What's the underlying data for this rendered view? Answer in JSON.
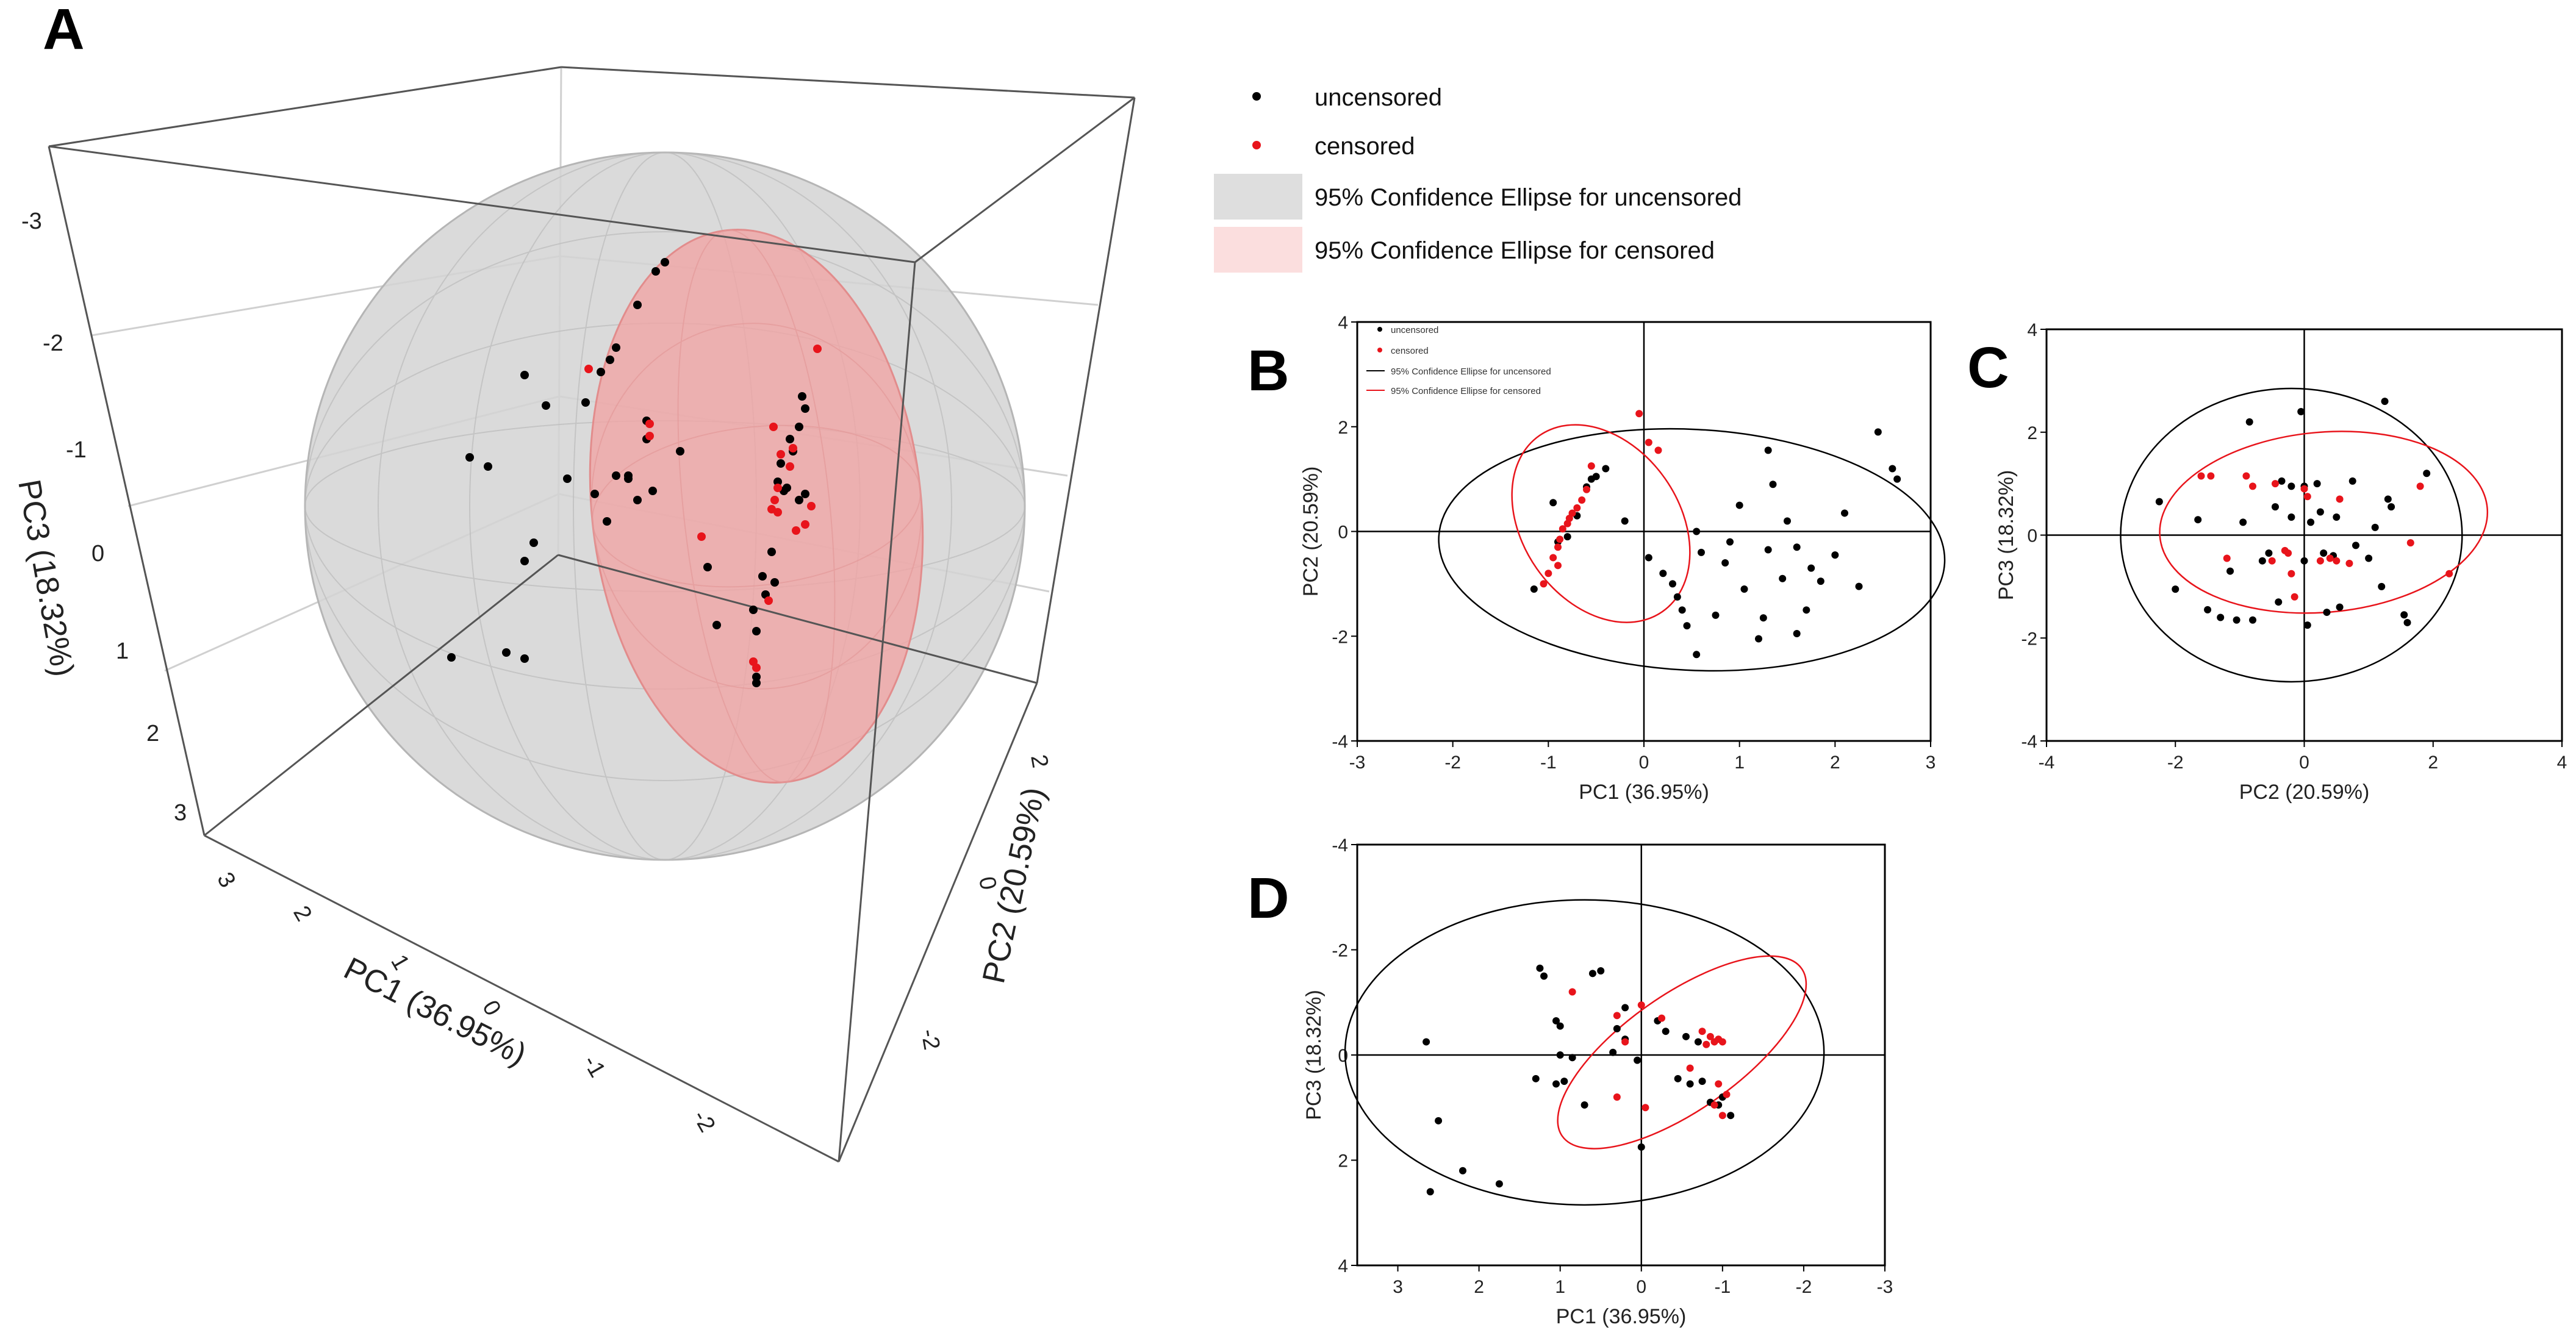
{
  "colors": {
    "uncensored": "#000000",
    "censored": "#e8141b",
    "ellipse_uncensored_fill": "#d4d4d4",
    "ellipse_censored_fill": "#f3b1b1",
    "ellipse_uncensored_line": "#000000",
    "ellipse_censored_line": "#e8141b"
  },
  "legend": {
    "uncensored": "uncensored",
    "censored": "censored",
    "ci_uncensored": "95% Confidence Ellipse for uncensored",
    "ci_censored": "95% Confidence Ellipse for censored"
  },
  "chart_data": [
    {
      "panel": "A",
      "type": "scatter",
      "projection": "3d",
      "xlabel": "PC1 (36.95%)",
      "ylabel": "PC2 (20.59%)",
      "zlabel": "PC3 (18.32%)",
      "x_ticks": [
        "3",
        "2",
        "1",
        "0",
        "-1",
        "-2"
      ],
      "y_ticks": [
        "2",
        "0",
        "-2"
      ],
      "z_ticks": [
        "-3",
        "-2",
        "-1",
        "0",
        "1",
        "2",
        "3"
      ],
      "legend_position": "top-right",
      "series": [
        {
          "name": "uncensored",
          "n_points": 55
        },
        {
          "name": "censored",
          "n_points": 25
        }
      ]
    },
    {
      "panel": "B",
      "type": "scatter",
      "xlabel": "PC1 (36.95%)",
      "ylabel": "PC2 (20.59%)",
      "xlim": [
        -3,
        3
      ],
      "ylim": [
        -4,
        4
      ],
      "x_ticks": [
        "-3",
        "-2",
        "-1",
        "0",
        "1",
        "2",
        "3"
      ],
      "y_ticks": [
        "-4",
        "-2",
        "0",
        "2",
        "4"
      ],
      "legend_position": "top-left",
      "series": [
        {
          "name": "uncensored",
          "points": [
            [
              -1.15,
              -1.1
            ],
            [
              -0.9,
              -0.2
            ],
            [
              -0.8,
              -0.1
            ],
            [
              -0.7,
              0.3
            ],
            [
              -0.95,
              0.55
            ],
            [
              -0.6,
              0.85
            ],
            [
              -0.55,
              1.0
            ],
            [
              -0.5,
              1.05
            ],
            [
              -0.4,
              1.2
            ],
            [
              -0.2,
              0.2
            ],
            [
              0.05,
              -0.5
            ],
            [
              0.2,
              -0.8
            ],
            [
              0.3,
              -1.0
            ],
            [
              0.35,
              -1.25
            ],
            [
              0.4,
              -1.5
            ],
            [
              0.45,
              -1.8
            ],
            [
              0.55,
              -2.35
            ],
            [
              0.6,
              -0.4
            ],
            [
              0.75,
              -1.6
            ],
            [
              0.85,
              -0.6
            ],
            [
              1.0,
              0.5
            ],
            [
              1.05,
              -1.1
            ],
            [
              1.2,
              -2.05
            ],
            [
              1.25,
              -1.65
            ],
            [
              1.3,
              -0.35
            ],
            [
              1.3,
              1.55
            ],
            [
              1.35,
              0.9
            ],
            [
              1.45,
              -0.9
            ],
            [
              1.5,
              0.2
            ],
            [
              1.6,
              -0.3
            ],
            [
              1.7,
              -1.5
            ],
            [
              1.75,
              -0.7
            ],
            [
              1.85,
              -0.95
            ],
            [
              2.0,
              -0.45
            ],
            [
              2.1,
              0.35
            ],
            [
              2.25,
              -1.05
            ],
            [
              2.45,
              1.9
            ],
            [
              2.6,
              1.2
            ],
            [
              2.65,
              1.0
            ],
            [
              0.9,
              -0.2
            ],
            [
              1.6,
              -1.95
            ],
            [
              0.55,
              0.0
            ]
          ]
        },
        {
          "name": "censored",
          "points": [
            [
              -1.05,
              -1.0
            ],
            [
              -1.0,
              -0.8
            ],
            [
              -0.95,
              -0.5
            ],
            [
              -0.9,
              -0.3
            ],
            [
              -0.88,
              -0.15
            ],
            [
              -0.85,
              0.05
            ],
            [
              -0.8,
              0.15
            ],
            [
              -0.75,
              0.35
            ],
            [
              -0.7,
              0.45
            ],
            [
              -0.65,
              0.6
            ],
            [
              -0.6,
              0.8
            ],
            [
              -0.55,
              1.25
            ],
            [
              -0.05,
              2.25
            ],
            [
              0.05,
              1.7
            ],
            [
              0.15,
              1.55
            ],
            [
              -0.9,
              -0.65
            ],
            [
              -0.78,
              0.25
            ]
          ]
        }
      ],
      "ellipses": [
        {
          "name": "uncensored",
          "cx": 0.5,
          "cy": -0.35,
          "rx": 2.65,
          "ry": 2.3,
          "angle_deg": -3
        },
        {
          "name": "censored",
          "cx": -0.45,
          "cy": 0.15,
          "rx": 0.82,
          "ry": 2.05,
          "angle_deg": 35
        }
      ]
    },
    {
      "panel": "C",
      "type": "scatter",
      "xlabel": "PC2 (20.59%)",
      "ylabel": "PC3 (18.32%)",
      "xlim": [
        -4,
        4
      ],
      "ylim": [
        -4,
        4
      ],
      "x_ticks": [
        "-4",
        "-2",
        "0",
        "2",
        "4"
      ],
      "y_ticks": [
        "-4",
        "-2",
        "0",
        "2",
        "4"
      ],
      "series": [
        {
          "name": "uncensored",
          "points": [
            [
              -2.25,
              0.65
            ],
            [
              -2.0,
              -1.05
            ],
            [
              -1.65,
              0.3
            ],
            [
              -1.5,
              -1.45
            ],
            [
              -1.3,
              -1.6
            ],
            [
              -1.05,
              -1.65
            ],
            [
              -0.95,
              0.25
            ],
            [
              -0.85,
              2.2
            ],
            [
              -0.8,
              -1.65
            ],
            [
              -0.65,
              -0.5
            ],
            [
              -0.45,
              0.55
            ],
            [
              -0.4,
              -1.3
            ],
            [
              -0.35,
              1.05
            ],
            [
              -0.2,
              0.95
            ],
            [
              -0.2,
              0.35
            ],
            [
              -0.05,
              2.4
            ],
            [
              0.0,
              -0.5
            ],
            [
              0.05,
              -1.75
            ],
            [
              0.1,
              0.25
            ],
            [
              0.2,
              1.0
            ],
            [
              0.25,
              0.45
            ],
            [
              0.3,
              -0.35
            ],
            [
              0.35,
              -1.5
            ],
            [
              0.45,
              -0.4
            ],
            [
              0.5,
              0.35
            ],
            [
              0.55,
              -1.4
            ],
            [
              0.75,
              1.05
            ],
            [
              0.8,
              -0.2
            ],
            [
              1.0,
              -0.45
            ],
            [
              1.1,
              0.15
            ],
            [
              1.2,
              -1.0
            ],
            [
              1.25,
              2.6
            ],
            [
              1.3,
              0.7
            ],
            [
              1.35,
              0.55
            ],
            [
              1.55,
              -1.55
            ],
            [
              1.6,
              -1.7
            ],
            [
              1.9,
              1.2
            ],
            [
              -0.55,
              -0.35
            ],
            [
              0.0,
              0.95
            ],
            [
              -1.15,
              -0.7
            ]
          ]
        },
        {
          "name": "censored",
          "points": [
            [
              -1.6,
              1.15
            ],
            [
              -1.45,
              1.15
            ],
            [
              -0.9,
              1.15
            ],
            [
              -0.8,
              0.95
            ],
            [
              -0.5,
              -0.5
            ],
            [
              -0.45,
              1.0
            ],
            [
              -0.3,
              -0.3
            ],
            [
              -0.25,
              -0.35
            ],
            [
              -0.2,
              -0.75
            ],
            [
              -0.15,
              -1.2
            ],
            [
              0.0,
              0.9
            ],
            [
              0.05,
              0.75
            ],
            [
              0.25,
              -0.5
            ],
            [
              0.4,
              -0.45
            ],
            [
              0.5,
              -0.5
            ],
            [
              0.55,
              0.7
            ],
            [
              0.7,
              -0.55
            ],
            [
              1.65,
              -0.15
            ],
            [
              1.8,
              0.95
            ],
            [
              2.25,
              -0.75
            ],
            [
              -1.2,
              -0.45
            ]
          ]
        }
      ],
      "ellipses": [
        {
          "name": "uncensored",
          "cx": -0.2,
          "cy": 0.0,
          "rx": 2.65,
          "ry": 2.85,
          "angle_deg": 0
        },
        {
          "name": "censored",
          "cx": 0.3,
          "cy": 0.25,
          "rx": 2.55,
          "ry": 1.75,
          "angle_deg": 5
        }
      ]
    },
    {
      "panel": "D",
      "type": "scatter",
      "xlabel": "PC1 (36.95%)",
      "ylabel": "PC3 (18.32%)",
      "xlim": [
        3.5,
        -3
      ],
      "ylim": [
        4,
        -4
      ],
      "x_ticks": [
        "3",
        "2",
        "1",
        "0",
        "-1",
        "-2",
        "-3"
      ],
      "y_ticks": [
        "-4",
        "-2",
        "0",
        "2",
        "4"
      ],
      "series": [
        {
          "name": "uncensored",
          "points": [
            [
              2.6,
              2.6
            ],
            [
              2.5,
              1.25
            ],
            [
              2.65,
              -0.25
            ],
            [
              2.2,
              2.2
            ],
            [
              1.75,
              2.45
            ],
            [
              1.25,
              -1.65
            ],
            [
              1.2,
              -1.5
            ],
            [
              1.05,
              -0.65
            ],
            [
              1.0,
              0.0
            ],
            [
              1.0,
              -0.55
            ],
            [
              1.05,
              0.55
            ],
            [
              0.95,
              0.5
            ],
            [
              0.85,
              0.05
            ],
            [
              0.7,
              0.95
            ],
            [
              0.6,
              -1.55
            ],
            [
              0.5,
              -1.6
            ],
            [
              0.35,
              -0.05
            ],
            [
              0.3,
              -0.5
            ],
            [
              0.2,
              -0.3
            ],
            [
              0.05,
              0.1
            ],
            [
              0.0,
              1.75
            ],
            [
              -0.2,
              -0.65
            ],
            [
              -0.3,
              -0.45
            ],
            [
              -0.45,
              0.45
            ],
            [
              -0.6,
              0.55
            ],
            [
              -0.75,
              0.5
            ],
            [
              -0.85,
              0.9
            ],
            [
              -0.95,
              0.95
            ],
            [
              -1.0,
              0.8
            ],
            [
              -0.55,
              -0.35
            ],
            [
              -0.7,
              -0.25
            ],
            [
              -1.1,
              1.15
            ],
            [
              1.3,
              0.45
            ],
            [
              0.2,
              -0.9
            ]
          ]
        },
        {
          "name": "censored",
          "points": [
            [
              0.85,
              -1.2
            ],
            [
              0.3,
              -0.75
            ],
            [
              0.2,
              -0.25
            ],
            [
              -0.05,
              1.0
            ],
            [
              -0.25,
              -0.7
            ],
            [
              -0.6,
              0.25
            ],
            [
              -0.75,
              -0.45
            ],
            [
              -0.8,
              -0.2
            ],
            [
              -0.85,
              -0.35
            ],
            [
              -0.9,
              -0.25
            ],
            [
              -0.95,
              -0.3
            ],
            [
              -1.0,
              -0.25
            ],
            [
              -0.9,
              0.95
            ],
            [
              -1.0,
              1.15
            ],
            [
              -1.05,
              0.75
            ],
            [
              -0.95,
              0.55
            ],
            [
              0.0,
              -0.95
            ],
            [
              0.3,
              0.8
            ]
          ]
        }
      ],
      "ellipses": [
        {
          "name": "uncensored",
          "cx": 0.7,
          "cy": -0.05,
          "rx": 2.95,
          "ry": 2.9,
          "angle_deg": 0
        },
        {
          "name": "censored",
          "cx": -0.5,
          "cy": -0.05,
          "rx": 1.8,
          "ry": 1.1,
          "angle_deg": 35
        }
      ]
    }
  ]
}
